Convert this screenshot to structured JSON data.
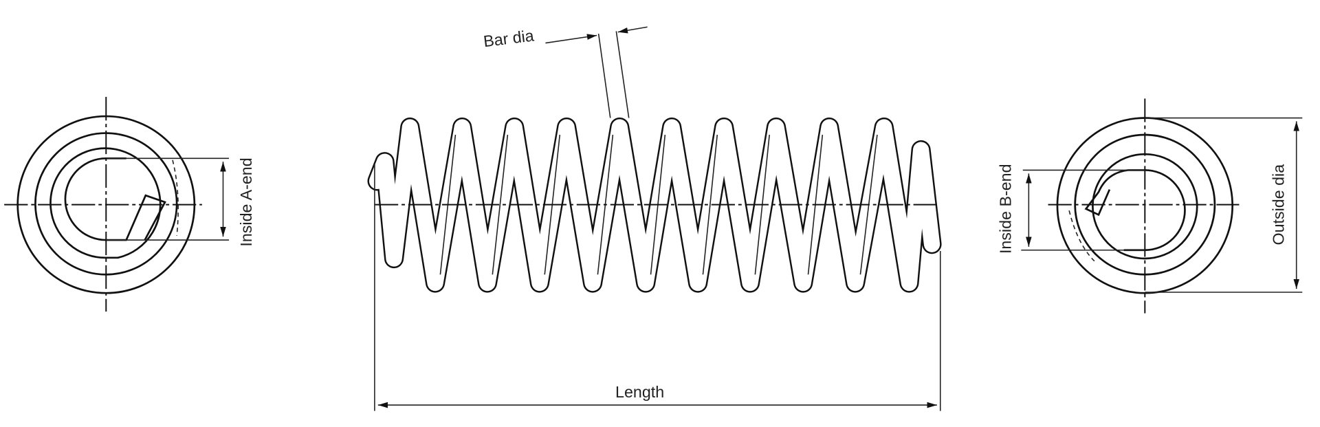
{
  "labels": {
    "bar_dia": "Bar dia",
    "inside_a_end": "Inside A-end",
    "inside_b_end": "Inside B-end",
    "outside_dia": "Outside dia",
    "length": "Length"
  },
  "colors": {
    "line": "#111111",
    "background": "#ffffff"
  }
}
